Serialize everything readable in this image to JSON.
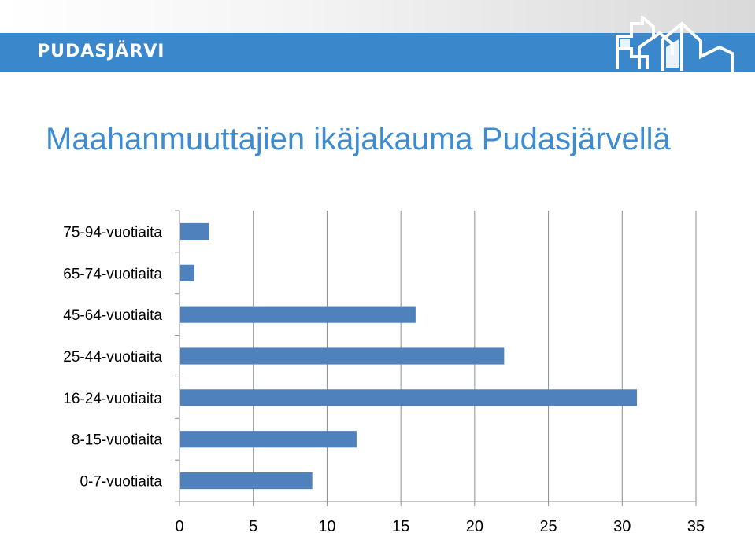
{
  "header": {
    "brand": "PUDASJÄRVI",
    "logo_icon": "pudasjarvi-houses-logo-icon",
    "banner_color": "#3a87cc"
  },
  "slide": {
    "title": "Maahanmuuttajien ikäjakauma Pudasjärvellä"
  },
  "chart_data": {
    "type": "bar",
    "orientation": "horizontal",
    "categories": [
      "75-94-vuotiaita",
      "65-74-vuotiaita",
      "45-64-vuotiaita",
      "25-44-vuotiaita",
      "16-24-vuotiaita",
      "8-15-vuotiaita",
      "0-7-vuotiaita"
    ],
    "values": [
      2,
      1,
      16,
      22,
      31,
      12,
      9
    ],
    "xlim": [
      0,
      35
    ],
    "xticks": [
      "0",
      "5",
      "10",
      "15",
      "20",
      "25",
      "30",
      "35"
    ],
    "grid": true,
    "legend": "none",
    "bar_color": "#4f81bd"
  }
}
